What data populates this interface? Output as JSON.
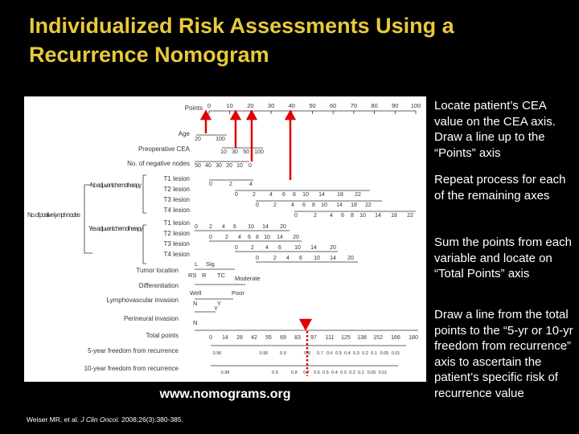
{
  "title": "Individualized Risk Assessments Using a Recurrence Nomogram",
  "steps": [
    "Locate patient’s CEA value on the CEA axis. Draw a line up to the “Points” axis",
    "Repeat process for each of the remaining axes",
    "Sum the points from each variable and locate on “Total Points” axis",
    "Draw a line from the total points to the “5-yr or 10-yr freedom from recurrence” axis to ascertain the patient’s specific risk of recurrence value"
  ],
  "website": "www.nomograms.org",
  "citation": {
    "authors": "Weiser MR, et al.",
    "journal": "J Clin Oncol.",
    "details": "2008;26(3):380-385."
  },
  "nomogram": {
    "row_labels": {
      "points": "Points",
      "age": "Age",
      "cea": "Preoperative CEA",
      "negnodes": "No. of negative nodes",
      "t1a": "T1 lesion",
      "t2a": "T2 lesion",
      "t3a": "T3 lesion",
      "t4a": "T4 lesion",
      "t1b": "T1 lesion",
      "t2b": "T2 lesion",
      "t3b": "T3 lesion",
      "t4b": "T4 lesion",
      "location": "Tumor location",
      "diff": "Differentiation",
      "lymph": "Lymphovascular invasion",
      "peri": "Perineural invasion",
      "total": "Total points",
      "fr5": "5-year freedom from recurrence",
      "fr10": "10-year freedom from recurrence"
    },
    "group_labels": {
      "no_adj": "No adjuvant chemotherapy",
      "yes_adj": "Yes adjuvant chemotherapy",
      "positive": "No. of positive lymph nodes"
    },
    "scales": {
      "points": [
        "0",
        "10",
        "20",
        "30",
        "40",
        "50",
        "60",
        "70",
        "80",
        "90",
        "100"
      ],
      "age": [
        "20",
        "100"
      ],
      "cea": [
        "10",
        "30",
        "50",
        "100"
      ],
      "negnodes": [
        "50",
        "40",
        "30",
        "20",
        "10",
        "0"
      ],
      "t1a": [
        "0",
        "2",
        "4"
      ],
      "t2a": [
        "0",
        "2",
        "4",
        "6",
        "8",
        "10",
        "14",
        "18",
        "22"
      ],
      "t3a": [
        "0",
        "2",
        "4",
        "6",
        "8",
        "10",
        "14",
        "18",
        "22"
      ],
      "t4a": [
        "0",
        "2",
        "4",
        "6",
        "8",
        "10",
        "14",
        "18",
        "22"
      ],
      "t1b": [
        "0",
        "2",
        "4",
        "6",
        "10",
        "14",
        "20"
      ],
      "t2b": [
        "0",
        "2",
        "4",
        "6",
        "8",
        "10",
        "14",
        "20"
      ],
      "t3b": [
        "0",
        "2",
        "4",
        "6",
        "10",
        "14",
        "20"
      ],
      "t4b": [
        "0",
        "2",
        "4",
        "6",
        "10",
        "14",
        "20"
      ],
      "location": [
        "L",
        "Sig",
        "RS",
        "R",
        "TC"
      ],
      "diff": [
        "Well",
        "Moderate",
        "Poor"
      ],
      "lymph": [
        "N",
        "Y"
      ],
      "peri": [
        "N",
        "Y"
      ],
      "total": [
        "0",
        "14",
        "28",
        "42",
        "55",
        "69",
        "83",
        "97",
        "111",
        "125",
        "138",
        "152",
        "166",
        "180"
      ],
      "fr5": [
        "0.96",
        "0.95",
        "0.9",
        "0.8",
        "0.7",
        "0.6",
        "0.5",
        "0.4",
        "0.3",
        "0.2",
        "0.1",
        "0.05",
        "0.01"
      ],
      "fr10": [
        "0.98",
        "0.9",
        "0.8",
        "0.7",
        "0.6",
        "0.5",
        "0.4",
        "0.3",
        "0.2",
        "0.1",
        "0.05",
        "0.01"
      ]
    },
    "marker_color": "#e00000"
  }
}
